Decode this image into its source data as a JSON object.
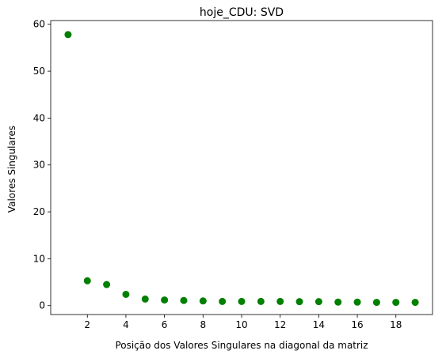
{
  "chart_data": {
    "type": "scatter",
    "title": "hoje_CDU: SVD",
    "xlabel": "Posição dos Valores Singulares na diagonal da matriz",
    "ylabel": "Valores Singulares",
    "xlim": [
      0.1,
      19.9
    ],
    "ylim": [
      -1.9,
      60.8
    ],
    "xticks": [
      2,
      4,
      6,
      8,
      10,
      12,
      14,
      16,
      18
    ],
    "yticks": [
      0,
      10,
      20,
      30,
      40,
      50,
      60
    ],
    "grid": false,
    "color": "#008000",
    "series": [
      {
        "x": [
          1,
          2,
          3,
          4,
          5,
          6,
          7,
          8,
          9,
          10,
          11,
          12,
          13,
          14,
          15,
          16,
          17,
          18,
          19
        ],
        "y": [
          57.8,
          5.3,
          4.5,
          2.4,
          1.4,
          1.2,
          1.1,
          1.0,
          0.9,
          0.9,
          0.9,
          0.9,
          0.85,
          0.85,
          0.75,
          0.75,
          0.7,
          0.7,
          0.7
        ]
      }
    ]
  }
}
